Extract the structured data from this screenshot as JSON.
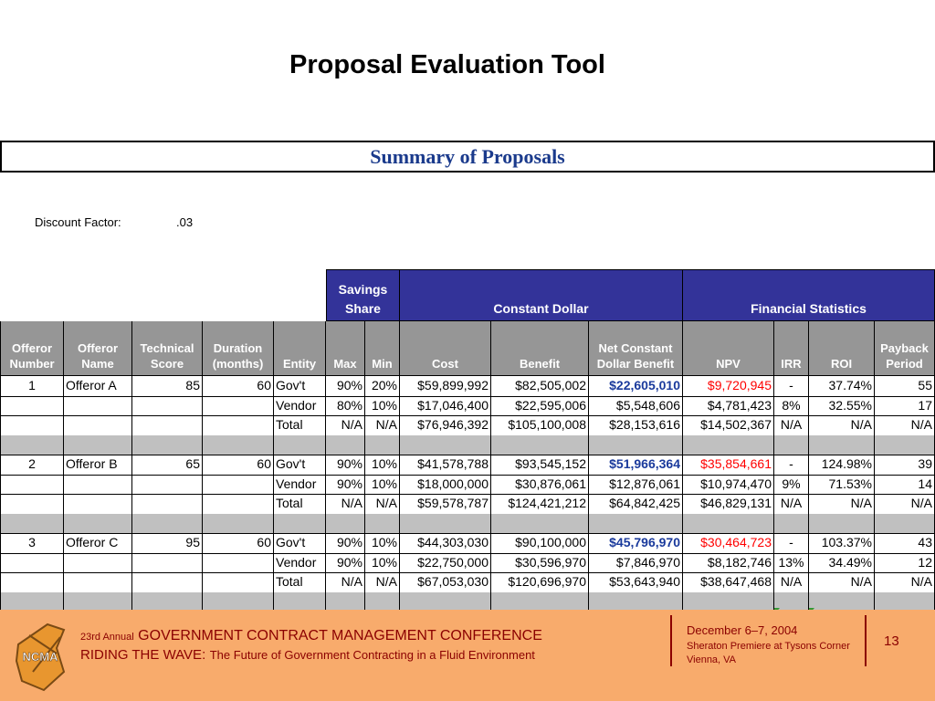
{
  "title": "Proposal Evaluation Tool",
  "summary_heading": "Summary of Proposals",
  "discount": {
    "label": "Discount Factor:",
    "value": ".03"
  },
  "table": {
    "group_headers": [
      "Savings Share",
      "Constant Dollar",
      "Financial Statistics"
    ],
    "columns": [
      "Offeror Number",
      "Offeror Name",
      "Technical Score",
      "Duration (months)",
      "Entity",
      "Max",
      "Min",
      "Cost",
      "Benefit",
      "Net Constant Dollar Benefit",
      "NPV",
      "IRR",
      "ROI",
      "Payback Period"
    ],
    "groups": [
      {
        "rows": [
          [
            "1",
            "Offeror A",
            "85",
            "60",
            "Gov't",
            "90%",
            "20%",
            "$59,899,992",
            "$82,505,002",
            "$22,605,010",
            "$9,720,945",
            "-",
            "37.74%",
            "55"
          ],
          [
            null,
            null,
            null,
            null,
            "Vendor",
            "80%",
            "10%",
            "$17,046,400",
            "$22,595,006",
            "$5,548,606",
            "$4,781,423",
            "8%",
            "32.55%",
            "17"
          ],
          [
            null,
            null,
            null,
            null,
            "Total",
            "N/A",
            "N/A",
            "$76,946,392",
            "$105,100,008",
            "$28,153,616",
            "$14,502,367",
            "N/A",
            "N/A",
            "N/A"
          ]
        ]
      },
      {
        "rows": [
          [
            "2",
            "Offeror B",
            "65",
            "60",
            "Gov't",
            "90%",
            "10%",
            "$41,578,788",
            "$93,545,152",
            "$51,966,364",
            "$35,854,661",
            "-",
            "124.98%",
            "39"
          ],
          [
            null,
            null,
            null,
            null,
            "Vendor",
            "90%",
            "10%",
            "$18,000,000",
            "$30,876,061",
            "$12,876,061",
            "$10,974,470",
            "9%",
            "71.53%",
            "14"
          ],
          [
            null,
            null,
            null,
            null,
            "Total",
            "N/A",
            "N/A",
            "$59,578,787",
            "$124,421,212",
            "$64,842,425",
            "$46,829,131",
            "N/A",
            "N/A",
            "N/A"
          ]
        ]
      },
      {
        "rows": [
          [
            "3",
            "Offeror C",
            "95",
            "60",
            "Gov't",
            "90%",
            "10%",
            "$44,303,030",
            "$90,100,000",
            "$45,796,970",
            "$30,464,723",
            "-",
            "103.37%",
            "43"
          ],
          [
            null,
            null,
            null,
            null,
            "Vendor",
            "90%",
            "10%",
            "$22,750,000",
            "$30,596,970",
            "$7,846,970",
            "$8,182,746",
            "13%",
            "34.49%",
            "12"
          ],
          [
            null,
            null,
            null,
            null,
            "Total",
            "N/A",
            "N/A",
            "$67,053,030",
            "$120,696,970",
            "$53,643,940",
            "$38,647,468",
            "N/A",
            "N/A",
            "N/A"
          ]
        ]
      }
    ]
  },
  "footer": {
    "logo": "NCMA",
    "edition": "23rd Annual",
    "conference": "GOVERNMENT CONTRACT MANAGEMENT CONFERENCE",
    "theme": "RIDING THE WAVE:",
    "subtitle": "The Future of Government Contracting in a Fluid Environment",
    "dates": "December 6–7, 2004",
    "venue": "Sheraton Premiere at Tysons Corner",
    "city": "Vienna, VA",
    "page": "13"
  }
}
